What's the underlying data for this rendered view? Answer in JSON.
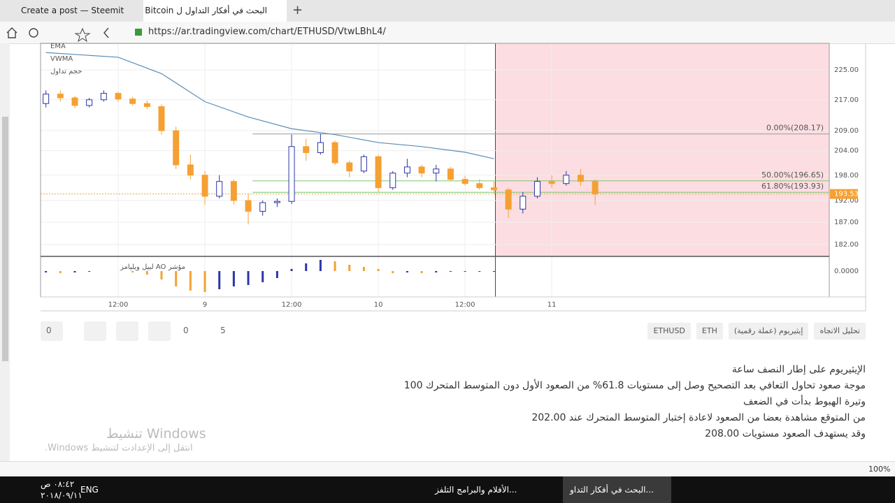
{
  "browser": {
    "tabs": [
      "Create a post — Steemit",
      "البحث في أفكار التداول ل Bitcoin"
    ],
    "url": "https://ar.tradingview.com/chart/ETHUSD/VtwLBhL4/",
    "zoom": "100%"
  },
  "chart_data": {
    "type": "candlestick",
    "indicator_legend": [
      "EMA",
      "VWMA",
      "حجم تداول"
    ],
    "open": [
      216,
      218.5,
      217.5,
      215.5,
      217,
      218.7,
      217.2,
      216,
      215.2,
      209,
      200.5,
      198,
      193,
      196.5,
      192,
      189.5,
      191.5,
      191.8,
      205,
      203.5,
      206,
      201,
      199,
      202.5,
      195,
      198.5,
      200,
      198.5,
      199.5,
      197,
      196,
      195,
      194.5,
      190,
      193,
      196.5,
      196,
      198,
      196.5
    ],
    "high": [
      219.5,
      219.5,
      218,
      217.5,
      219.5,
      219.2,
      217.8,
      216.8,
      215.8,
      210,
      203,
      199,
      198,
      197,
      193.5,
      192,
      192.5,
      208,
      207,
      208.2,
      206.5,
      201.5,
      203,
      203,
      199,
      202,
      200.5,
      200.5,
      200,
      197.8,
      197,
      196.5,
      195,
      194,
      197.5,
      198,
      199,
      199.5,
      197
    ],
    "low": [
      215,
      216.5,
      214.8,
      215,
      216.5,
      216.5,
      215.5,
      214.5,
      208,
      199.5,
      197,
      191,
      192.5,
      191,
      186.5,
      188.5,
      190.5,
      191.2,
      201.5,
      203,
      200.5,
      197.5,
      198.5,
      194,
      194.5,
      197.5,
      197.5,
      196.5,
      196.5,
      195.5,
      194.5,
      193.5,
      188,
      189,
      192.5,
      195,
      195.5,
      195.5,
      191
    ],
    "close": [
      218.5,
      217.5,
      215.5,
      217,
      218.7,
      217.2,
      216,
      215.2,
      209,
      200.5,
      198,
      193,
      196.5,
      192,
      189.5,
      191.5,
      191.8,
      205,
      203.5,
      206,
      201,
      199,
      202.5,
      195,
      198.5,
      200,
      198.5,
      199.5,
      197,
      196,
      195,
      194.5,
      190,
      193,
      196.5,
      196,
      198,
      196.5,
      193.53
    ],
    "up_color": "#2b35a8",
    "down_color": "#f5a033",
    "ema": {
      "color": "#5b8db5",
      "x": [
        0,
        5,
        8,
        11,
        14,
        17,
        20,
        23,
        26,
        29,
        31
      ],
      "values": [
        229.8,
        228.5,
        224,
        216.5,
        212.5,
        209.5,
        208,
        206,
        205,
        203.6,
        202
      ]
    },
    "xlim": [
      -0.37,
      54.2
    ],
    "xticks": [
      {
        "value": 5,
        "label": "12:00"
      },
      {
        "value": 11,
        "label": "9"
      },
      {
        "value": 17,
        "label": "12:00"
      },
      {
        "value": 23,
        "label": "10"
      },
      {
        "value": 29,
        "label": "12:00"
      },
      {
        "value": 35,
        "label": "11"
      }
    ],
    "ylim": [
      179.4,
      232.4
    ],
    "log_scale": true,
    "yticks": [
      {
        "value": 225,
        "label": "225.00"
      },
      {
        "value": 217,
        "label": "217.00"
      },
      {
        "value": 209,
        "label": "209.00"
      },
      {
        "value": 204,
        "label": "204.00"
      },
      {
        "value": 198,
        "label": "198.00"
      },
      {
        "value": 192,
        "label": "192.00"
      },
      {
        "value": 187,
        "label": "187.00"
      },
      {
        "value": 182,
        "label": "182.00"
      }
    ],
    "grid": true,
    "highlight_from": 31.1,
    "fib_from": 14.3,
    "fib_levels": [
      {
        "value": 208.17,
        "label": "0.00%(208.17)",
        "color": "#999999"
      },
      {
        "value": 196.65,
        "label": "50.00%(196.65)",
        "color": "#7cc36a"
      },
      {
        "value": 193.93,
        "label": "61.80%(193.93)",
        "color": "#7cc36a"
      }
    ],
    "last_price": 193.53,
    "ao": {
      "title": "مؤشر AO لبيل ويليامز",
      "values": [
        -0.2,
        -0.3,
        -0.2,
        -0.1,
        0,
        0,
        -0.2,
        -0.5,
        -1.2,
        -2.2,
        -2.8,
        -3.0,
        -2.6,
        -2.2,
        -2.0,
        -1.6,
        -1.0,
        0.3,
        1.1,
        1.6,
        1.4,
        0.9,
        0.6,
        0.3,
        -0.3,
        -0.2,
        -0.3,
        -0.2,
        -0.1,
        -0.1,
        -0.1,
        -0.1
      ],
      "ylim": [
        -3.7,
        2.1
      ],
      "yticks": [
        {
          "value": 0,
          "label": "0.0000"
        }
      ]
    }
  },
  "post": {
    "likes": 0,
    "comments": 0,
    "views": 5,
    "tags": [
      "تحليل الاتجاه",
      "إيثيريوم (عملة رقمية)",
      "ETH",
      "ETHUSD"
    ],
    "body": [
      "الإيثيريوم على إطار النصف ساعة",
      "موجة صعود تحاول التعافي بعد التصحيح وصل إلى مستويات 61.8% من الصعود الأول دون المتوسط المتحرك 100",
      "وتيرة الهبوط بدأت في الضعف",
      "من المتوقع مشاهدة بعضا من الصعود لاعادة إختبار المتوسط المتحرك عند 202.00",
      "وقد يستهدف الصعود مستويات 208.00"
    ]
  },
  "watermark": {
    "title": "تنشيط Windows",
    "subtitle": "انتقل إلى الإعدادت لتنشيط Windows."
  },
  "taskbar": {
    "apps": [
      "البحث في أفكار التداو...",
      "الأفلام والبرامج التلفز..."
    ],
    "language": "ENG",
    "time": "٠٨:٤٢ ص",
    "date": "٢٠١٨/٠٩/١١"
  }
}
